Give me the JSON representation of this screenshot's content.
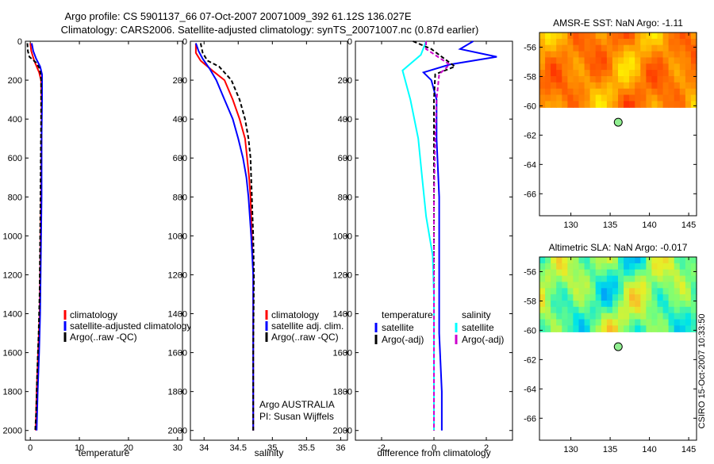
{
  "header": {
    "line1": "Argo profile: CS 5901137_66 07-Oct-2007 20071009_392 61.12S 136.027E",
    "line2": "Climatology: CARS2006. Satellite-adjusted climatology: synTS_20071007.nc (0.87d earlier)"
  },
  "footer": {
    "stamp": "CSIRO 15-Oct-2007 10:33:50"
  },
  "colors": {
    "climatology": "#ff0000",
    "satellite": "#0000ff",
    "argo": "#000000",
    "salinity_satellite": "#00ffff",
    "salinity_argo": "#cc00cc",
    "marker": "#90ee90"
  },
  "chart_data": [
    {
      "type": "line",
      "id": "temperature",
      "xlabel": "temperature",
      "ylabel": "",
      "xlim": [
        -1,
        31
      ],
      "ylim": [
        2050,
        0
      ],
      "xticks": [
        0,
        10,
        20,
        30
      ],
      "yticks": [
        0,
        200,
        400,
        600,
        800,
        1000,
        1200,
        1400,
        1600,
        1800,
        2000
      ],
      "legend": [
        "climatology",
        "satellite-adjusted climatology",
        "Argo(..raw -QC)"
      ],
      "series": [
        {
          "name": "climatology",
          "color": "#ff0000",
          "dash": "none",
          "points": [
            [
              0.0,
              10
            ],
            [
              0.2,
              50
            ],
            [
              0.8,
              100
            ],
            [
              1.8,
              160
            ],
            [
              2.2,
              200
            ],
            [
              2.3,
              300
            ],
            [
              2.3,
              500
            ],
            [
              2.2,
              800
            ],
            [
              2.1,
              1000
            ],
            [
              2.0,
              1200
            ],
            [
              1.9,
              1400
            ],
            [
              1.6,
              1600
            ],
            [
              1.3,
              1800
            ],
            [
              1.1,
              2000
            ]
          ]
        },
        {
          "name": "satellite-adjusted climatology",
          "color": "#0000ff",
          "dash": "none",
          "points": [
            [
              0.3,
              10
            ],
            [
              0.6,
              50
            ],
            [
              1.2,
              90
            ],
            [
              2.0,
              130
            ],
            [
              2.4,
              170
            ],
            [
              2.4,
              200
            ],
            [
              2.4,
              300
            ],
            [
              2.3,
              500
            ],
            [
              2.3,
              800
            ],
            [
              2.2,
              1000
            ],
            [
              2.1,
              1200
            ],
            [
              2.0,
              1400
            ],
            [
              1.8,
              1600
            ],
            [
              1.5,
              1800
            ],
            [
              1.3,
              2000
            ]
          ]
        },
        {
          "name": "Argo(..raw -QC)",
          "color": "#000000",
          "dash": "5,3",
          "points": [
            [
              -0.6,
              10
            ],
            [
              -0.5,
              50
            ],
            [
              -0.2,
              80
            ],
            [
              1.2,
              110
            ],
            [
              1.9,
              140
            ],
            [
              2.1,
              170
            ],
            [
              2.2,
              200
            ],
            [
              2.2,
              400
            ],
            [
              2.1,
              700
            ],
            [
              2.0,
              1000
            ],
            [
              1.9,
              1300
            ],
            [
              1.7,
              1500
            ],
            [
              1.4,
              1700
            ],
            [
              1.2,
              1900
            ],
            [
              1.0,
              2000
            ]
          ]
        }
      ]
    },
    {
      "type": "line",
      "id": "salinity",
      "xlabel": "salinity",
      "ylabel": "",
      "xlim": [
        33.8,
        36.1
      ],
      "ylim": [
        2050,
        0
      ],
      "xticks": [
        34,
        34.5,
        35,
        35.5,
        36
      ],
      "xticklabels": [
        "34",
        "34.5",
        "35",
        "35.5",
        "36"
      ],
      "yticks": [
        0,
        200,
        400,
        600,
        800,
        1000,
        1200,
        1400,
        1600,
        1800,
        2000
      ],
      "legend": [
        "climatology",
        "satellite adj. clim.",
        "Argo(..raw -QC)"
      ],
      "annotations": [
        "Argo AUSTRALIA",
        "PI: Susan Wijffels"
      ],
      "series": [
        {
          "name": "climatology",
          "color": "#ff0000",
          "dash": "none",
          "points": [
            [
              33.88,
              10
            ],
            [
              33.88,
              60
            ],
            [
              33.95,
              100
            ],
            [
              34.12,
              150
            ],
            [
              34.3,
              200
            ],
            [
              34.42,
              300
            ],
            [
              34.52,
              400
            ],
            [
              34.6,
              500
            ],
            [
              34.63,
              600
            ],
            [
              34.66,
              700
            ],
            [
              34.68,
              800
            ],
            [
              34.69,
              900
            ],
            [
              34.7,
              1000
            ],
            [
              34.72,
              1200
            ],
            [
              34.72,
              1600
            ],
            [
              34.72,
              2000
            ]
          ]
        },
        {
          "name": "satellite adj. clim.",
          "color": "#0000ff",
          "dash": "none",
          "points": [
            [
              33.88,
              10
            ],
            [
              33.92,
              50
            ],
            [
              33.98,
              90
            ],
            [
              34.08,
              140
            ],
            [
              34.18,
              200
            ],
            [
              34.3,
              300
            ],
            [
              34.42,
              400
            ],
            [
              34.5,
              500
            ],
            [
              34.57,
              600
            ],
            [
              34.62,
              700
            ],
            [
              34.65,
              800
            ],
            [
              34.67,
              900
            ],
            [
              34.69,
              1000
            ],
            [
              34.72,
              1200
            ],
            [
              34.72,
              1600
            ],
            [
              34.72,
              2000
            ]
          ]
        },
        {
          "name": "Argo(..raw -QC)",
          "color": "#000000",
          "dash": "5,3",
          "points": [
            [
              33.95,
              10
            ],
            [
              33.98,
              60
            ],
            [
              34.05,
              100
            ],
            [
              34.22,
              130
            ],
            [
              34.4,
              200
            ],
            [
              34.52,
              300
            ],
            [
              34.6,
              400
            ],
            [
              34.65,
              500
            ],
            [
              34.68,
              600
            ],
            [
              34.69,
              700
            ],
            [
              34.7,
              800
            ],
            [
              34.71,
              900
            ],
            [
              34.72,
              1000
            ],
            [
              34.73,
              1200
            ],
            [
              34.72,
              1600
            ],
            [
              34.72,
              2000
            ]
          ]
        }
      ]
    },
    {
      "type": "line",
      "id": "difference",
      "xlabel": "difference from climatology",
      "ylabel": "",
      "xlim": [
        -3,
        3
      ],
      "ylim": [
        2050,
        0
      ],
      "xticks": [
        -2,
        0,
        2
      ],
      "yticks": [
        0,
        200,
        400,
        600,
        800,
        1000,
        1200,
        1400,
        1600,
        1800,
        2000
      ],
      "legend_titles": [
        "temperature",
        "salinity"
      ],
      "legend": [
        "satellite",
        "Argo(-adj)",
        "satellite",
        "Argo(-adj)"
      ],
      "series": [
        {
          "name": "temperature satellite",
          "color": "#0000ff",
          "dash": "none",
          "points": [
            [
              1.5,
              0
            ],
            [
              1.0,
              40
            ],
            [
              2.4,
              80
            ],
            [
              0.6,
              120
            ],
            [
              -0.4,
              160
            ],
            [
              -0.1,
              200
            ],
            [
              0.1,
              300
            ],
            [
              0.1,
              500
            ],
            [
              0.2,
              800
            ],
            [
              0.2,
              1100
            ],
            [
              0.2,
              1500
            ],
            [
              0.3,
              1800
            ],
            [
              0.3,
              2000
            ]
          ]
        },
        {
          "name": "temperature Argo(-adj)",
          "color": "#000000",
          "dash": "5,3",
          "points": [
            [
              -0.8,
              0
            ],
            [
              -0.1,
              40
            ],
            [
              0.8,
              130
            ],
            [
              0.05,
              170
            ],
            [
              0.0,
              300
            ],
            [
              0.0,
              800
            ],
            [
              0.0,
              1500
            ],
            [
              0.0,
              2000
            ]
          ]
        },
        {
          "name": "salinity satellite",
          "color": "#00ffff",
          "dash": "none",
          "points": [
            [
              -0.3,
              0
            ],
            [
              -0.5,
              70
            ],
            [
              -1.2,
              150
            ],
            [
              -0.9,
              300
            ],
            [
              -0.6,
              500
            ],
            [
              -0.45,
              700
            ],
            [
              -0.3,
              900
            ],
            [
              -0.05,
              1100
            ],
            [
              0.0,
              1300
            ],
            [
              0.0,
              2000
            ]
          ]
        },
        {
          "name": "salinity Argo(-adj)",
          "color": "#cc00cc",
          "dash": "5,3",
          "points": [
            [
              -0.3,
              0
            ],
            [
              -0.3,
              40
            ],
            [
              0.6,
              120
            ],
            [
              0.2,
              170
            ],
            [
              0.1,
              300
            ],
            [
              0.05,
              500
            ],
            [
              0.0,
              800
            ],
            [
              0.0,
              2000
            ]
          ]
        }
      ]
    },
    {
      "type": "heatmap",
      "id": "sst",
      "title": "AMSR-E SST: NaN Argo: -1.11",
      "xlim": [
        126,
        146
      ],
      "ylim": [
        -67.5,
        -55
      ],
      "xticks": [
        130,
        135,
        140,
        145
      ],
      "yticks": [
        -56,
        -58,
        -60,
        -62,
        -64,
        -66
      ],
      "coverage_lat_min": -60.1,
      "argo_position": [
        136.027,
        -61.12
      ]
    },
    {
      "type": "heatmap",
      "id": "sla",
      "title": "Altimetric SLA: NaN Argo: -0.017",
      "xlim": [
        126,
        146
      ],
      "ylim": [
        -67.5,
        -55
      ],
      "xticks": [
        130,
        135,
        140,
        145
      ],
      "yticks": [
        -56,
        -58,
        -60,
        -62,
        -64,
        -66
      ],
      "coverage_lat_min": -60.1,
      "argo_position": [
        136.027,
        -61.12
      ]
    }
  ]
}
